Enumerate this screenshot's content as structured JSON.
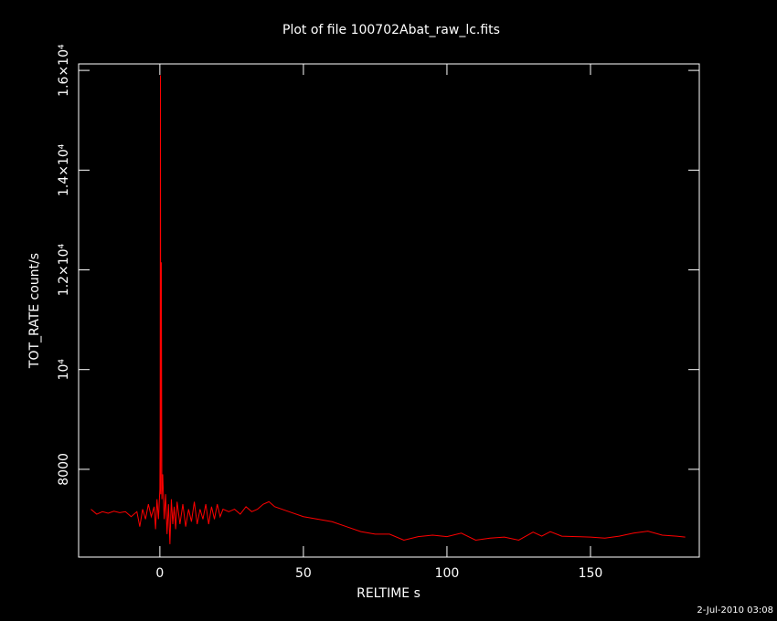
{
  "chart_data": {
    "type": "line",
    "title": "Plot of file 100702Abat_raw_lc.fits",
    "x_label": "RELTIME  s",
    "y_label": "TOT_RATE  count/s",
    "timestamp": "2-Jul-2010 03:08",
    "x": [
      -24,
      -22,
      -20,
      -18,
      -16,
      -14,
      -12,
      -10,
      -8,
      -7,
      -6,
      -5,
      -4,
      -3,
      -2,
      -1.5,
      -1,
      -0.5,
      0,
      0.1,
      0.2,
      0.3,
      0.5,
      0.7,
      1,
      1.5,
      2,
      2.5,
      3,
      3.5,
      4,
      4.5,
      5,
      5.5,
      6,
      7,
      8,
      9,
      10,
      11,
      12,
      13,
      14,
      15,
      16,
      17,
      18,
      19,
      20,
      21,
      22,
      24,
      26,
      28,
      30,
      32,
      34,
      36,
      38,
      40,
      45,
      50,
      55,
      60,
      65,
      70,
      75,
      80,
      85,
      90,
      95,
      100,
      105,
      110,
      115,
      120,
      125,
      130,
      133,
      136,
      140,
      145,
      150,
      155,
      160,
      165,
      170,
      175,
      180,
      183
    ],
    "series": [
      {
        "color": "#ff0000",
        "values": [
          7200,
          7100,
          7150,
          7120,
          7160,
          7130,
          7150,
          7050,
          7150,
          6850,
          7200,
          7000,
          7300,
          7050,
          7250,
          6800,
          7400,
          7000,
          7600,
          8800,
          15900,
          7500,
          12150,
          7400,
          7900,
          7000,
          7500,
          6700,
          7300,
          6500,
          7400,
          6900,
          7250,
          6800,
          7350,
          6900,
          7300,
          6850,
          7200,
          6950,
          7350,
          6900,
          7200,
          7000,
          7300,
          6900,
          7250,
          7000,
          7300,
          7050,
          7200,
          7150,
          7200,
          7100,
          7250,
          7150,
          7200,
          7300,
          7350,
          7250,
          7150,
          7050,
          7000,
          6950,
          6850,
          6750,
          6700,
          6700,
          6580,
          6650,
          6680,
          6650,
          6720,
          6580,
          6620,
          6640,
          6580,
          6740,
          6660,
          6750,
          6660,
          6650,
          6640,
          6620,
          6660,
          6720,
          6760,
          6680,
          6660,
          6640
        ]
      }
    ],
    "xlim": [
      -28.3,
      187.9
    ],
    "ylim": [
      6240,
      16130
    ],
    "xticks": [
      0,
      50,
      100,
      150
    ],
    "yticks": [
      8000,
      {
        "value": 10000,
        "label": "10⁴"
      },
      {
        "value": 12000,
        "label": "1.2×10⁴"
      },
      {
        "value": 14000,
        "label": "1.4×10⁴"
      },
      {
        "value": 16000,
        "label": "1.6×10⁴"
      }
    ]
  }
}
